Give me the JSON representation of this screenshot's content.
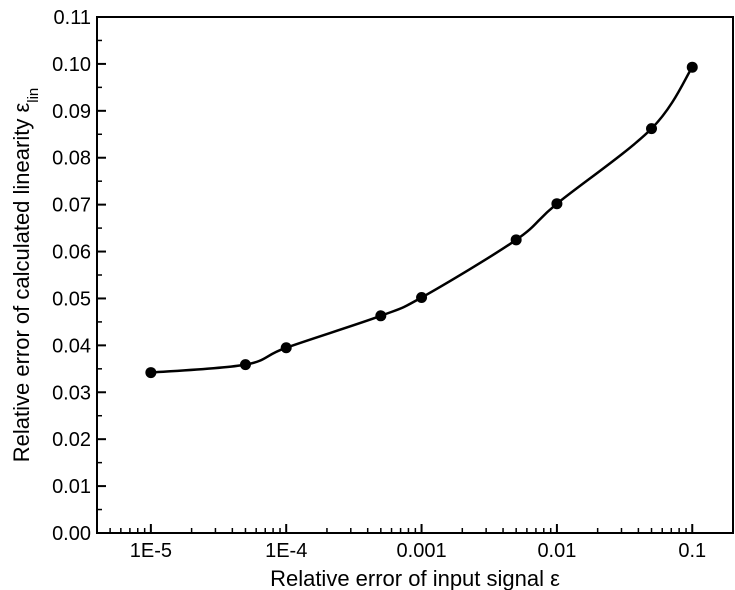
{
  "chart_data": {
    "type": "scatter",
    "title": "",
    "xlabel": "Relative error of input signal ε",
    "ylabel_main": "Relative error of calculated linearity ε",
    "ylabel_sub": "lin",
    "x_scale": "log",
    "xlim": [
      4e-06,
      0.2
    ],
    "ylim": [
      0.0,
      0.11
    ],
    "grid": false,
    "legend": "none",
    "x_ticks": [
      {
        "value": 1e-05,
        "label": "1E-5"
      },
      {
        "value": 0.0001,
        "label": "1E-4"
      },
      {
        "value": 0.001,
        "label": "0.001"
      },
      {
        "value": 0.01,
        "label": "0.01"
      },
      {
        "value": 0.1,
        "label": "0.1"
      }
    ],
    "y_ticks": [
      {
        "value": 0.0,
        "label": "0.00"
      },
      {
        "value": 0.01,
        "label": "0.01"
      },
      {
        "value": 0.02,
        "label": "0.02"
      },
      {
        "value": 0.03,
        "label": "0.03"
      },
      {
        "value": 0.04,
        "label": "0.04"
      },
      {
        "value": 0.05,
        "label": "0.05"
      },
      {
        "value": 0.06,
        "label": "0.06"
      },
      {
        "value": 0.07,
        "label": "0.07"
      },
      {
        "value": 0.08,
        "label": "0.08"
      },
      {
        "value": 0.09,
        "label": "0.09"
      },
      {
        "value": 0.1,
        "label": "0.10"
      },
      {
        "value": 0.11,
        "label": "0.11"
      }
    ],
    "series": [
      {
        "x": [
          1e-05,
          5e-05,
          0.0001,
          0.0005,
          0.001,
          0.005,
          0.01,
          0.05,
          0.1
        ],
        "y": [
          0.0342,
          0.0359,
          0.0395,
          0.0463,
          0.0502,
          0.0625,
          0.0702,
          0.0862,
          0.0993
        ],
        "marker": "filled-circle",
        "line": "smooth",
        "color": "#000000"
      }
    ]
  }
}
